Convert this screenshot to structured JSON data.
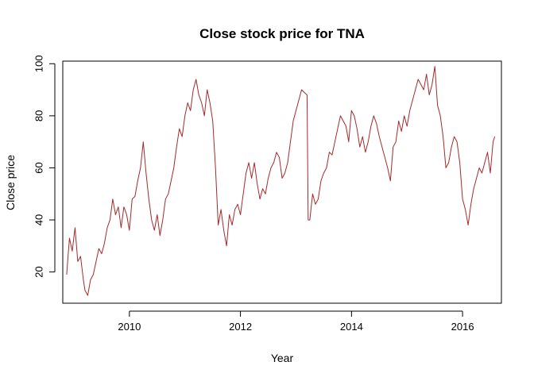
{
  "chart_data": {
    "type": "line",
    "title": "Close stock price for TNA",
    "xlabel": "Year",
    "ylabel": "Close price",
    "xlim": [
      2008.8,
      2016.7
    ],
    "ylim": [
      8,
      101
    ],
    "x_ticks": [
      2010,
      2012,
      2014,
      2016
    ],
    "y_ticks": [
      20,
      40,
      60,
      80,
      100
    ],
    "grid": false,
    "series": [
      {
        "color": "#A52A2A",
        "x": [
          2008.87,
          2008.92,
          2008.97,
          2009.02,
          2009.07,
          2009.12,
          2009.17,
          2009.2,
          2009.25,
          2009.3,
          2009.35,
          2009.4,
          2009.45,
          2009.5,
          2009.55,
          2009.6,
          2009.65,
          2009.7,
          2009.75,
          2009.8,
          2009.85,
          2009.9,
          2009.95,
          2010.0,
          2010.05,
          2010.1,
          2010.15,
          2010.2,
          2010.25,
          2010.3,
          2010.35,
          2010.4,
          2010.45,
          2010.5,
          2010.55,
          2010.6,
          2010.65,
          2010.7,
          2010.75,
          2010.8,
          2010.85,
          2010.9,
          2010.95,
          2011.0,
          2011.05,
          2011.1,
          2011.15,
          2011.2,
          2011.25,
          2011.3,
          2011.35,
          2011.4,
          2011.45,
          2011.5,
          2011.55,
          2011.6,
          2011.65,
          2011.7,
          2011.75,
          2011.8,
          2011.85,
          2011.9,
          2011.95,
          2012.0,
          2012.05,
          2012.1,
          2012.15,
          2012.2,
          2012.25,
          2012.3,
          2012.35,
          2012.4,
          2012.45,
          2012.5,
          2012.55,
          2012.6,
          2012.65,
          2012.7,
          2012.75,
          2012.8,
          2012.85,
          2012.9,
          2012.95,
          2013.0,
          2013.05,
          2013.1,
          2013.15,
          2013.2,
          2013.22,
          2013.25,
          2013.3,
          2013.35,
          2013.4,
          2013.45,
          2013.5,
          2013.55,
          2013.6,
          2013.65,
          2013.7,
          2013.75,
          2013.8,
          2013.85,
          2013.9,
          2013.95,
          2014.0,
          2014.05,
          2014.1,
          2014.15,
          2014.2,
          2014.25,
          2014.3,
          2014.35,
          2014.4,
          2014.45,
          2014.5,
          2014.55,
          2014.6,
          2014.65,
          2014.7,
          2014.75,
          2014.8,
          2014.85,
          2014.9,
          2014.95,
          2015.0,
          2015.05,
          2015.1,
          2015.15,
          2015.2,
          2015.25,
          2015.3,
          2015.35,
          2015.4,
          2015.45,
          2015.5,
          2015.55,
          2015.6,
          2015.65,
          2015.7,
          2015.75,
          2015.8,
          2015.85,
          2015.9,
          2015.95,
          2016.0,
          2016.05,
          2016.1,
          2016.15,
          2016.2,
          2016.25,
          2016.3,
          2016.35,
          2016.4,
          2016.45,
          2016.5,
          2016.55,
          2016.58
        ],
        "y": [
          19,
          33,
          28,
          37,
          24,
          26,
          17,
          13,
          11,
          17,
          19,
          24,
          29,
          27,
          31,
          37,
          40,
          48,
          42,
          45,
          37,
          45,
          42,
          36,
          48,
          49,
          55,
          60,
          70,
          58,
          48,
          40,
          36,
          42,
          34,
          40,
          48,
          50,
          55,
          60,
          68,
          75,
          72,
          80,
          85,
          82,
          90,
          94,
          88,
          85,
          80,
          90,
          85,
          78,
          60,
          38,
          44,
          36,
          30,
          42,
          38,
          44,
          46,
          42,
          50,
          58,
          62,
          56,
          62,
          54,
          48,
          52,
          50,
          56,
          60,
          62,
          66,
          64,
          56,
          58,
          62,
          70,
          78,
          82,
          86,
          90,
          89,
          88,
          40,
          40,
          50,
          46,
          48,
          55,
          58,
          60,
          66,
          65,
          70,
          75,
          80,
          78,
          76,
          70,
          82,
          80,
          75,
          68,
          72,
          66,
          70,
          76,
          80,
          77,
          72,
          68,
          64,
          60,
          55,
          68,
          70,
          78,
          74,
          80,
          76,
          82,
          86,
          90,
          94,
          92,
          90,
          96,
          88,
          92,
          99,
          84,
          80,
          72,
          60,
          62,
          68,
          72,
          70,
          62,
          48,
          44,
          38,
          46,
          52,
          56,
          60,
          58,
          62,
          66,
          58,
          70,
          72
        ]
      }
    ]
  }
}
